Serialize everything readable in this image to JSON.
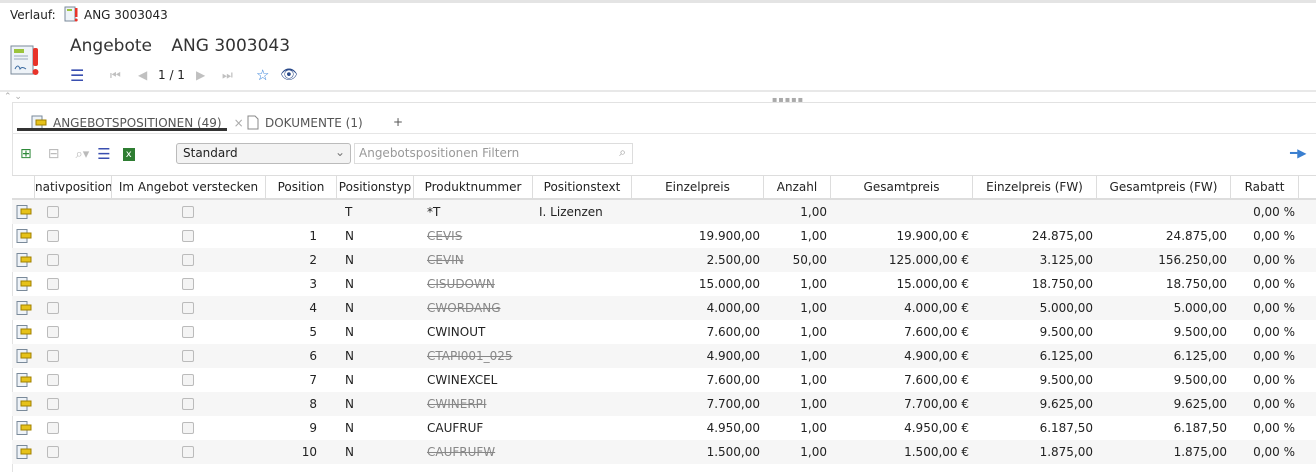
{
  "history": {
    "label": "Verlauf:",
    "item": "ANG 3003043"
  },
  "header": {
    "module": "Angebote",
    "record": "ANG 3003043",
    "pager": "1 / 1"
  },
  "tabs": [
    {
      "label": "ANGEBOTSPOSITIONEN (49)",
      "active": true
    },
    {
      "label": "DOKUMENTE (1)",
      "active": false
    },
    {
      "label": "+"
    }
  ],
  "toolbar": {
    "view": "Standard",
    "filter_placeholder": "Angebotspositionen Filtern"
  },
  "colors": {
    "accent": "#3a4fb0",
    "strike": "#888888",
    "row_alt": "#f6f6f6"
  },
  "columns": [
    "nativposition",
    "Im Angebot verstecken",
    "Position",
    "Positionstyp",
    "Produktnummer",
    "Positionstext",
    "Einzelpreis",
    "Anzahl",
    "Gesamtpreis",
    "Einzelpreis (FW)",
    "Gesamtpreis (FW)",
    "Rabatt"
  ],
  "rows": [
    {
      "pos": "",
      "typ": "T",
      "prod": "*T",
      "strike": false,
      "text": "I. Lizenzen",
      "ep": "",
      "anz": "1,00",
      "gp": "",
      "epfw": "",
      "gpfw": "",
      "rabatt": "0,00 %"
    },
    {
      "pos": "1",
      "typ": "N",
      "prod": "CEVIS",
      "strike": true,
      "text": "",
      "ep": "19.900,00",
      "anz": "1,00",
      "gp": "19.900,00 €",
      "epfw": "24.875,00",
      "gpfw": "24.875,00",
      "rabatt": "0,00 %"
    },
    {
      "pos": "2",
      "typ": "N",
      "prod": "CEVIN",
      "strike": true,
      "text": "",
      "ep": "2.500,00",
      "anz": "50,00",
      "gp": "125.000,00 €",
      "epfw": "3.125,00",
      "gpfw": "156.250,00",
      "rabatt": "0,00 %"
    },
    {
      "pos": "3",
      "typ": "N",
      "prod": "CISUDOWN",
      "strike": true,
      "text": "",
      "ep": "15.000,00",
      "anz": "1,00",
      "gp": "15.000,00 €",
      "epfw": "18.750,00",
      "gpfw": "18.750,00",
      "rabatt": "0,00 %"
    },
    {
      "pos": "4",
      "typ": "N",
      "prod": "CWORDANG",
      "strike": true,
      "text": "",
      "ep": "4.000,00",
      "anz": "1,00",
      "gp": "4.000,00 €",
      "epfw": "5.000,00",
      "gpfw": "5.000,00",
      "rabatt": "0,00 %"
    },
    {
      "pos": "5",
      "typ": "N",
      "prod": "CWINOUT",
      "strike": false,
      "text": "",
      "ep": "7.600,00",
      "anz": "1,00",
      "gp": "7.600,00 €",
      "epfw": "9.500,00",
      "gpfw": "9.500,00",
      "rabatt": "0,00 %"
    },
    {
      "pos": "6",
      "typ": "N",
      "prod": "CTAPI001_025",
      "strike": true,
      "text": "",
      "ep": "4.900,00",
      "anz": "1,00",
      "gp": "4.900,00 €",
      "epfw": "6.125,00",
      "gpfw": "6.125,00",
      "rabatt": "0,00 %"
    },
    {
      "pos": "7",
      "typ": "N",
      "prod": "CWINEXCEL",
      "strike": false,
      "text": "",
      "ep": "7.600,00",
      "anz": "1,00",
      "gp": "7.600,00 €",
      "epfw": "9.500,00",
      "gpfw": "9.500,00",
      "rabatt": "0,00 %"
    },
    {
      "pos": "8",
      "typ": "N",
      "prod": "CWINERPI",
      "strike": true,
      "text": "",
      "ep": "7.700,00",
      "anz": "1,00",
      "gp": "7.700,00 €",
      "epfw": "9.625,00",
      "gpfw": "9.625,00",
      "rabatt": "0,00 %"
    },
    {
      "pos": "9",
      "typ": "N",
      "prod": "CAUFRUF",
      "strike": false,
      "text": "",
      "ep": "4.950,00",
      "anz": "1,00",
      "gp": "4.950,00 €",
      "epfw": "6.187,50",
      "gpfw": "6.187,50",
      "rabatt": "0,00 %"
    },
    {
      "pos": "10",
      "typ": "N",
      "prod": "CAUFRUFW",
      "strike": true,
      "text": "",
      "ep": "1.500,00",
      "anz": "1,00",
      "gp": "1.500,00 €",
      "epfw": "1.875,00",
      "gpfw": "1.875,00",
      "rabatt": "0,00 %"
    }
  ]
}
